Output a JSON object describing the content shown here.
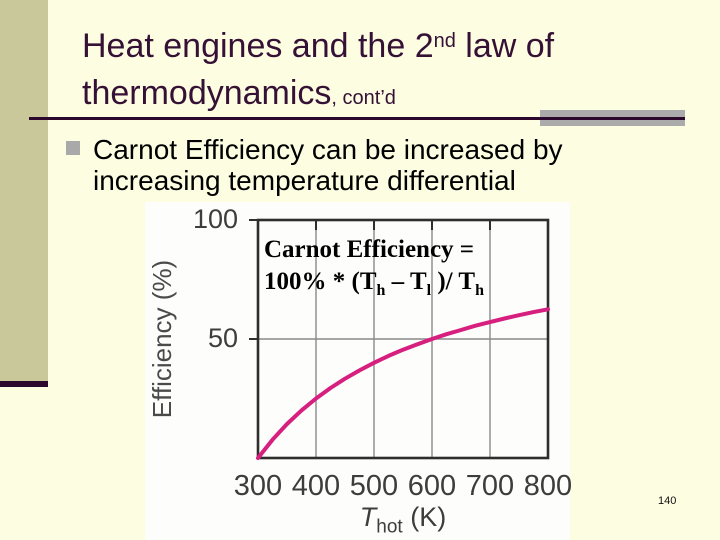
{
  "slide": {
    "background_color": "#fdfde1",
    "accent_bar_color": "#c8c89b",
    "accent_line_color": "#2d082d",
    "page_number": "140"
  },
  "title": {
    "color": "#351135",
    "line1_pre": "Heat engines and the 2",
    "line1_sup": "nd",
    "line1_post": " law of",
    "line2": "thermodynamics",
    "line2_suffix": ", cont’d"
  },
  "bullet": {
    "marker_color": "#a9a9a9",
    "line1": "Carnot Efficiency can be increased by",
    "line2": "increasing temperature differential"
  },
  "formula": {
    "line1": "Carnot Efficiency =",
    "line2_t1": "100% * (T",
    "line2_sub1": "h",
    "line2_t2": " – T",
    "line2_sub2": "l",
    "line2_t3": " )/ T",
    "line2_sub3": "h"
  },
  "chart": {
    "y_axis_label": "Efficiency (%)",
    "x_axis_label_t": "T",
    "x_axis_label_sub": "hot",
    "x_axis_label_rest": " (K)"
  },
  "chart_data": {
    "type": "line",
    "title": "Carnot efficiency vs hot reservoir temperature (T_low = 300 K)",
    "xlabel": "T_hot (K)",
    "ylabel": "Efficiency (%)",
    "xlim": [
      300,
      800
    ],
    "ylim": [
      0,
      100
    ],
    "x": [
      300,
      325,
      350,
      375,
      400,
      425,
      450,
      475,
      500,
      525,
      550,
      575,
      600,
      625,
      650,
      675,
      700,
      725,
      750,
      775,
      800
    ],
    "y": [
      0,
      7.7,
      14.3,
      20,
      25,
      29.4,
      33.3,
      36.8,
      40,
      42.9,
      45.5,
      47.8,
      50,
      52,
      53.8,
      55.6,
      57.1,
      58.6,
      60,
      61.3,
      62.5
    ],
    "x_ticks": [
      300,
      400,
      500,
      600,
      700,
      800
    ],
    "y_ticks": [
      100,
      50
    ],
    "y_tick_labels": [
      "100",
      "50"
    ],
    "x_gridlines": [
      400,
      500,
      600,
      700
    ],
    "y_gridlines": [
      50
    ],
    "grid": true,
    "legend": false,
    "line_color": "#d61f7e",
    "border_color": "#2e2e2e",
    "grid_color": "#8a8a8a"
  }
}
